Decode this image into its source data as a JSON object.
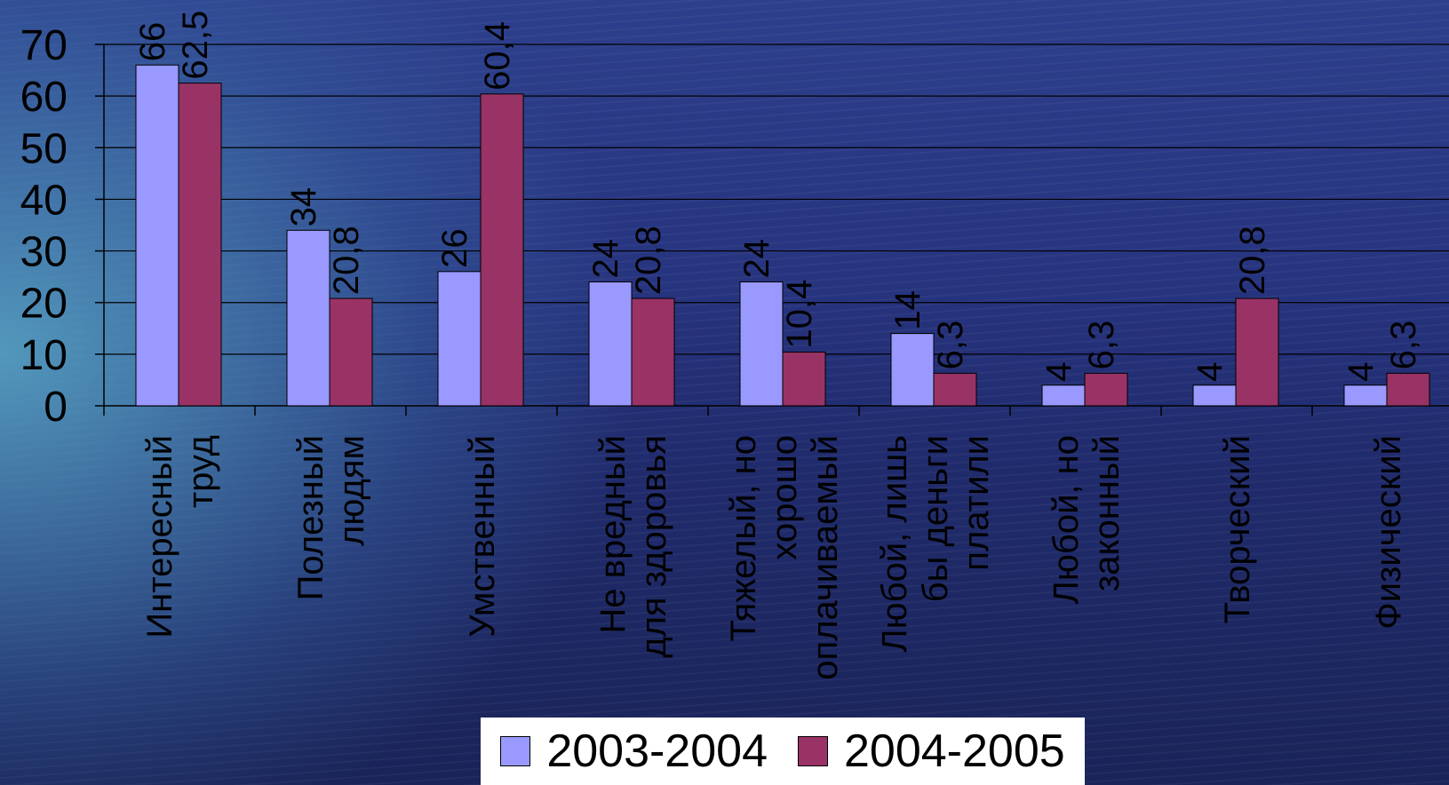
{
  "chart_data": {
    "type": "bar",
    "categories": [
      [
        "Интересный",
        "труд"
      ],
      [
        "Полезный",
        "людям"
      ],
      [
        "Умственный"
      ],
      [
        "Не вредный",
        "для здоровья"
      ],
      [
        "Тяжелый, но",
        "хорошо",
        "оплачиваемый"
      ],
      [
        "Любой, лишь",
        "бы деньги",
        "платили"
      ],
      [
        "Любой, но",
        "законный"
      ],
      [
        "Творческий"
      ],
      [
        "Физический"
      ]
    ],
    "series": [
      {
        "name": "2003-2004",
        "color": "#9999ff",
        "values": [
          66,
          34,
          26,
          24,
          24,
          14,
          4,
          4,
          4
        ],
        "labels": [
          "66",
          "34",
          "26",
          "24",
          "24",
          "14",
          "4",
          "4",
          "4"
        ]
      },
      {
        "name": "2004-2005",
        "color": "#993366",
        "values": [
          62.5,
          20.8,
          60.4,
          20.8,
          10.4,
          6.3,
          6.3,
          20.8,
          6.3
        ],
        "labels": [
          "62,5",
          "20,8",
          "60,4",
          "20,8",
          "10,4",
          "6,3",
          "6,3",
          "20,8",
          "6,3"
        ]
      }
    ],
    "yticks": [
      "0",
      "10",
      "20",
      "30",
      "40",
      "50",
      "60",
      "70"
    ],
    "ylim": [
      0,
      70
    ],
    "grid": true,
    "legend_position": "bottom"
  }
}
